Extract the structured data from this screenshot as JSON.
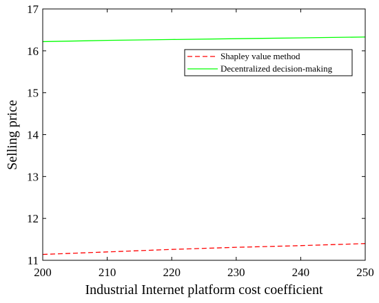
{
  "chart_data": {
    "type": "line",
    "title": "",
    "xlabel": "Industrial Internet platform cost coefficient",
    "ylabel": "Selling price",
    "xlim": [
      200,
      250
    ],
    "ylim": [
      11,
      17
    ],
    "xticks": [
      200,
      210,
      220,
      230,
      240,
      250
    ],
    "yticks": [
      11,
      12,
      13,
      14,
      15,
      16,
      17
    ],
    "grid": false,
    "legend_position": "top-right",
    "x": [
      200,
      210,
      220,
      230,
      240,
      250
    ],
    "series": [
      {
        "name": "Shapley value method",
        "style": "dashed",
        "color": "#ff0000",
        "values": [
          11.14,
          11.2,
          11.26,
          11.31,
          11.35,
          11.4
        ]
      },
      {
        "name": "Decentralized decision-making",
        "style": "solid",
        "color": "#00ff00",
        "values": [
          16.22,
          16.25,
          16.27,
          16.29,
          16.31,
          16.33
        ]
      }
    ]
  }
}
